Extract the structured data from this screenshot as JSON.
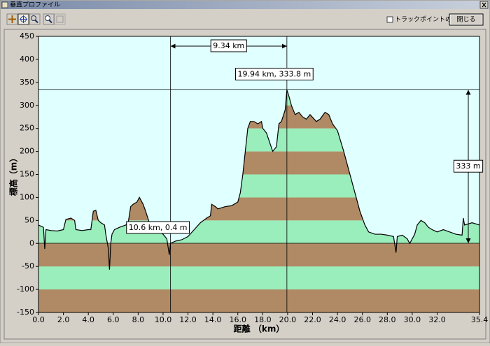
{
  "window": {
    "title": "垂直プロファイル",
    "checkbox_label": "トラックポイントの表示(S)",
    "close_button": "閉じる"
  },
  "chart_data": {
    "type": "area",
    "x_label": "距離 （km）",
    "y_label": "標高（m）",
    "x": [
      0.0,
      0.4,
      0.5,
      0.6,
      1.0,
      1.5,
      2.0,
      2.2,
      2.6,
      2.9,
      3.0,
      3.5,
      4.0,
      4.2,
      4.3,
      4.4,
      4.6,
      4.8,
      5.0,
      5.3,
      5.4,
      5.6,
      5.7,
      5.8,
      5.9,
      6.1,
      6.5,
      7.0,
      7.2,
      7.4,
      7.6,
      7.9,
      8.1,
      8.4,
      8.6,
      8.9,
      9.5,
      10.0,
      10.3,
      10.5,
      10.6,
      11.0,
      11.5,
      12.0,
      12.5,
      13.0,
      13.5,
      13.8,
      13.9,
      14.2,
      14.4,
      15.0,
      15.5,
      16.0,
      16.2,
      16.4,
      16.6,
      16.8,
      17.0,
      17.3,
      17.6,
      17.9,
      18.0,
      18.3,
      18.8,
      19.1,
      19.3,
      19.5,
      19.8,
      19.94,
      20.1,
      20.3,
      20.6,
      20.9,
      21.2,
      21.5,
      21.8,
      22.3,
      22.6,
      23.0,
      23.3,
      23.6,
      24.0,
      24.5,
      25.0,
      25.5,
      25.8,
      26.2,
      26.5,
      27.0,
      27.5,
      28.0,
      28.5,
      28.7,
      28.8,
      29.2,
      29.6,
      29.8,
      30.0,
      30.2,
      30.4,
      30.7,
      31.0,
      31.3,
      31.6,
      32.0,
      32.5,
      33.0,
      33.5,
      34.0,
      34.1,
      34.2,
      34.8,
      35.4
    ],
    "series": [
      {
        "name": "標高",
        "color": "#000000",
        "values": [
          40,
          35,
          -12,
          30,
          28,
          27,
          30,
          52,
          55,
          50,
          30,
          28,
          30,
          30,
          50,
          70,
          72,
          50,
          45,
          40,
          20,
          -10,
          -57,
          0,
          20,
          30,
          35,
          40,
          45,
          80,
          85,
          90,
          100,
          85,
          70,
          45,
          30,
          20,
          10,
          -25,
          0.4,
          5,
          8,
          15,
          30,
          45,
          55,
          60,
          85,
          80,
          75,
          80,
          82,
          90,
          110,
          150,
          200,
          250,
          265,
          265,
          260,
          265,
          250,
          240,
          200,
          210,
          260,
          265,
          290,
          333.8,
          320,
          300,
          280,
          285,
          275,
          270,
          280,
          265,
          270,
          285,
          280,
          260,
          245,
          200,
          150,
          100,
          70,
          40,
          25,
          20,
          20,
          18,
          15,
          -20,
          15,
          18,
          10,
          0,
          10,
          20,
          40,
          50,
          45,
          35,
          30,
          25,
          30,
          25,
          20,
          18,
          55,
          40,
          45,
          40
        ]
      }
    ],
    "band_colors": [
      "#b08a64",
      "#99eebb"
    ],
    "background": "#e0ffff",
    "xlim": [
      0,
      35.4
    ],
    "ylim": [
      -150,
      450
    ],
    "xticks": [
      {
        "value": 0,
        "label": "0.0"
      },
      {
        "value": 2,
        "label": "2.0"
      },
      {
        "value": 4,
        "label": "4.0"
      },
      {
        "value": 6,
        "label": "6.0"
      },
      {
        "value": 8,
        "label": "8.0"
      },
      {
        "value": 10,
        "label": "10.0"
      },
      {
        "value": 12,
        "label": "12.0"
      },
      {
        "value": 14,
        "label": "14.0"
      },
      {
        "value": 16,
        "label": "16.0"
      },
      {
        "value": 18,
        "label": "18.0"
      },
      {
        "value": 20,
        "label": "20.0"
      },
      {
        "value": 22,
        "label": "22.0"
      },
      {
        "value": 24,
        "label": "24.0"
      },
      {
        "value": 26,
        "label": "26.0"
      },
      {
        "value": 28,
        "label": "28.0"
      },
      {
        "value": 30,
        "label": "30.0"
      },
      {
        "value": 32,
        "label": "32.0"
      },
      35.4
    ],
    "yticks": [
      -150,
      -100,
      -50,
      0,
      50,
      100,
      150,
      200,
      250,
      300,
      350,
      400,
      450
    ],
    "markers": [
      {
        "x": 10.6,
        "y": 0.4,
        "label": "10.6 km, 0.4 m"
      },
      {
        "x": 19.94,
        "y": 333.8,
        "label": "19.94 km, 333.8 m"
      }
    ],
    "distance": {
      "value": 9.34,
      "label": "9.34 km"
    },
    "height": {
      "value": 333,
      "label": "333 m"
    }
  }
}
